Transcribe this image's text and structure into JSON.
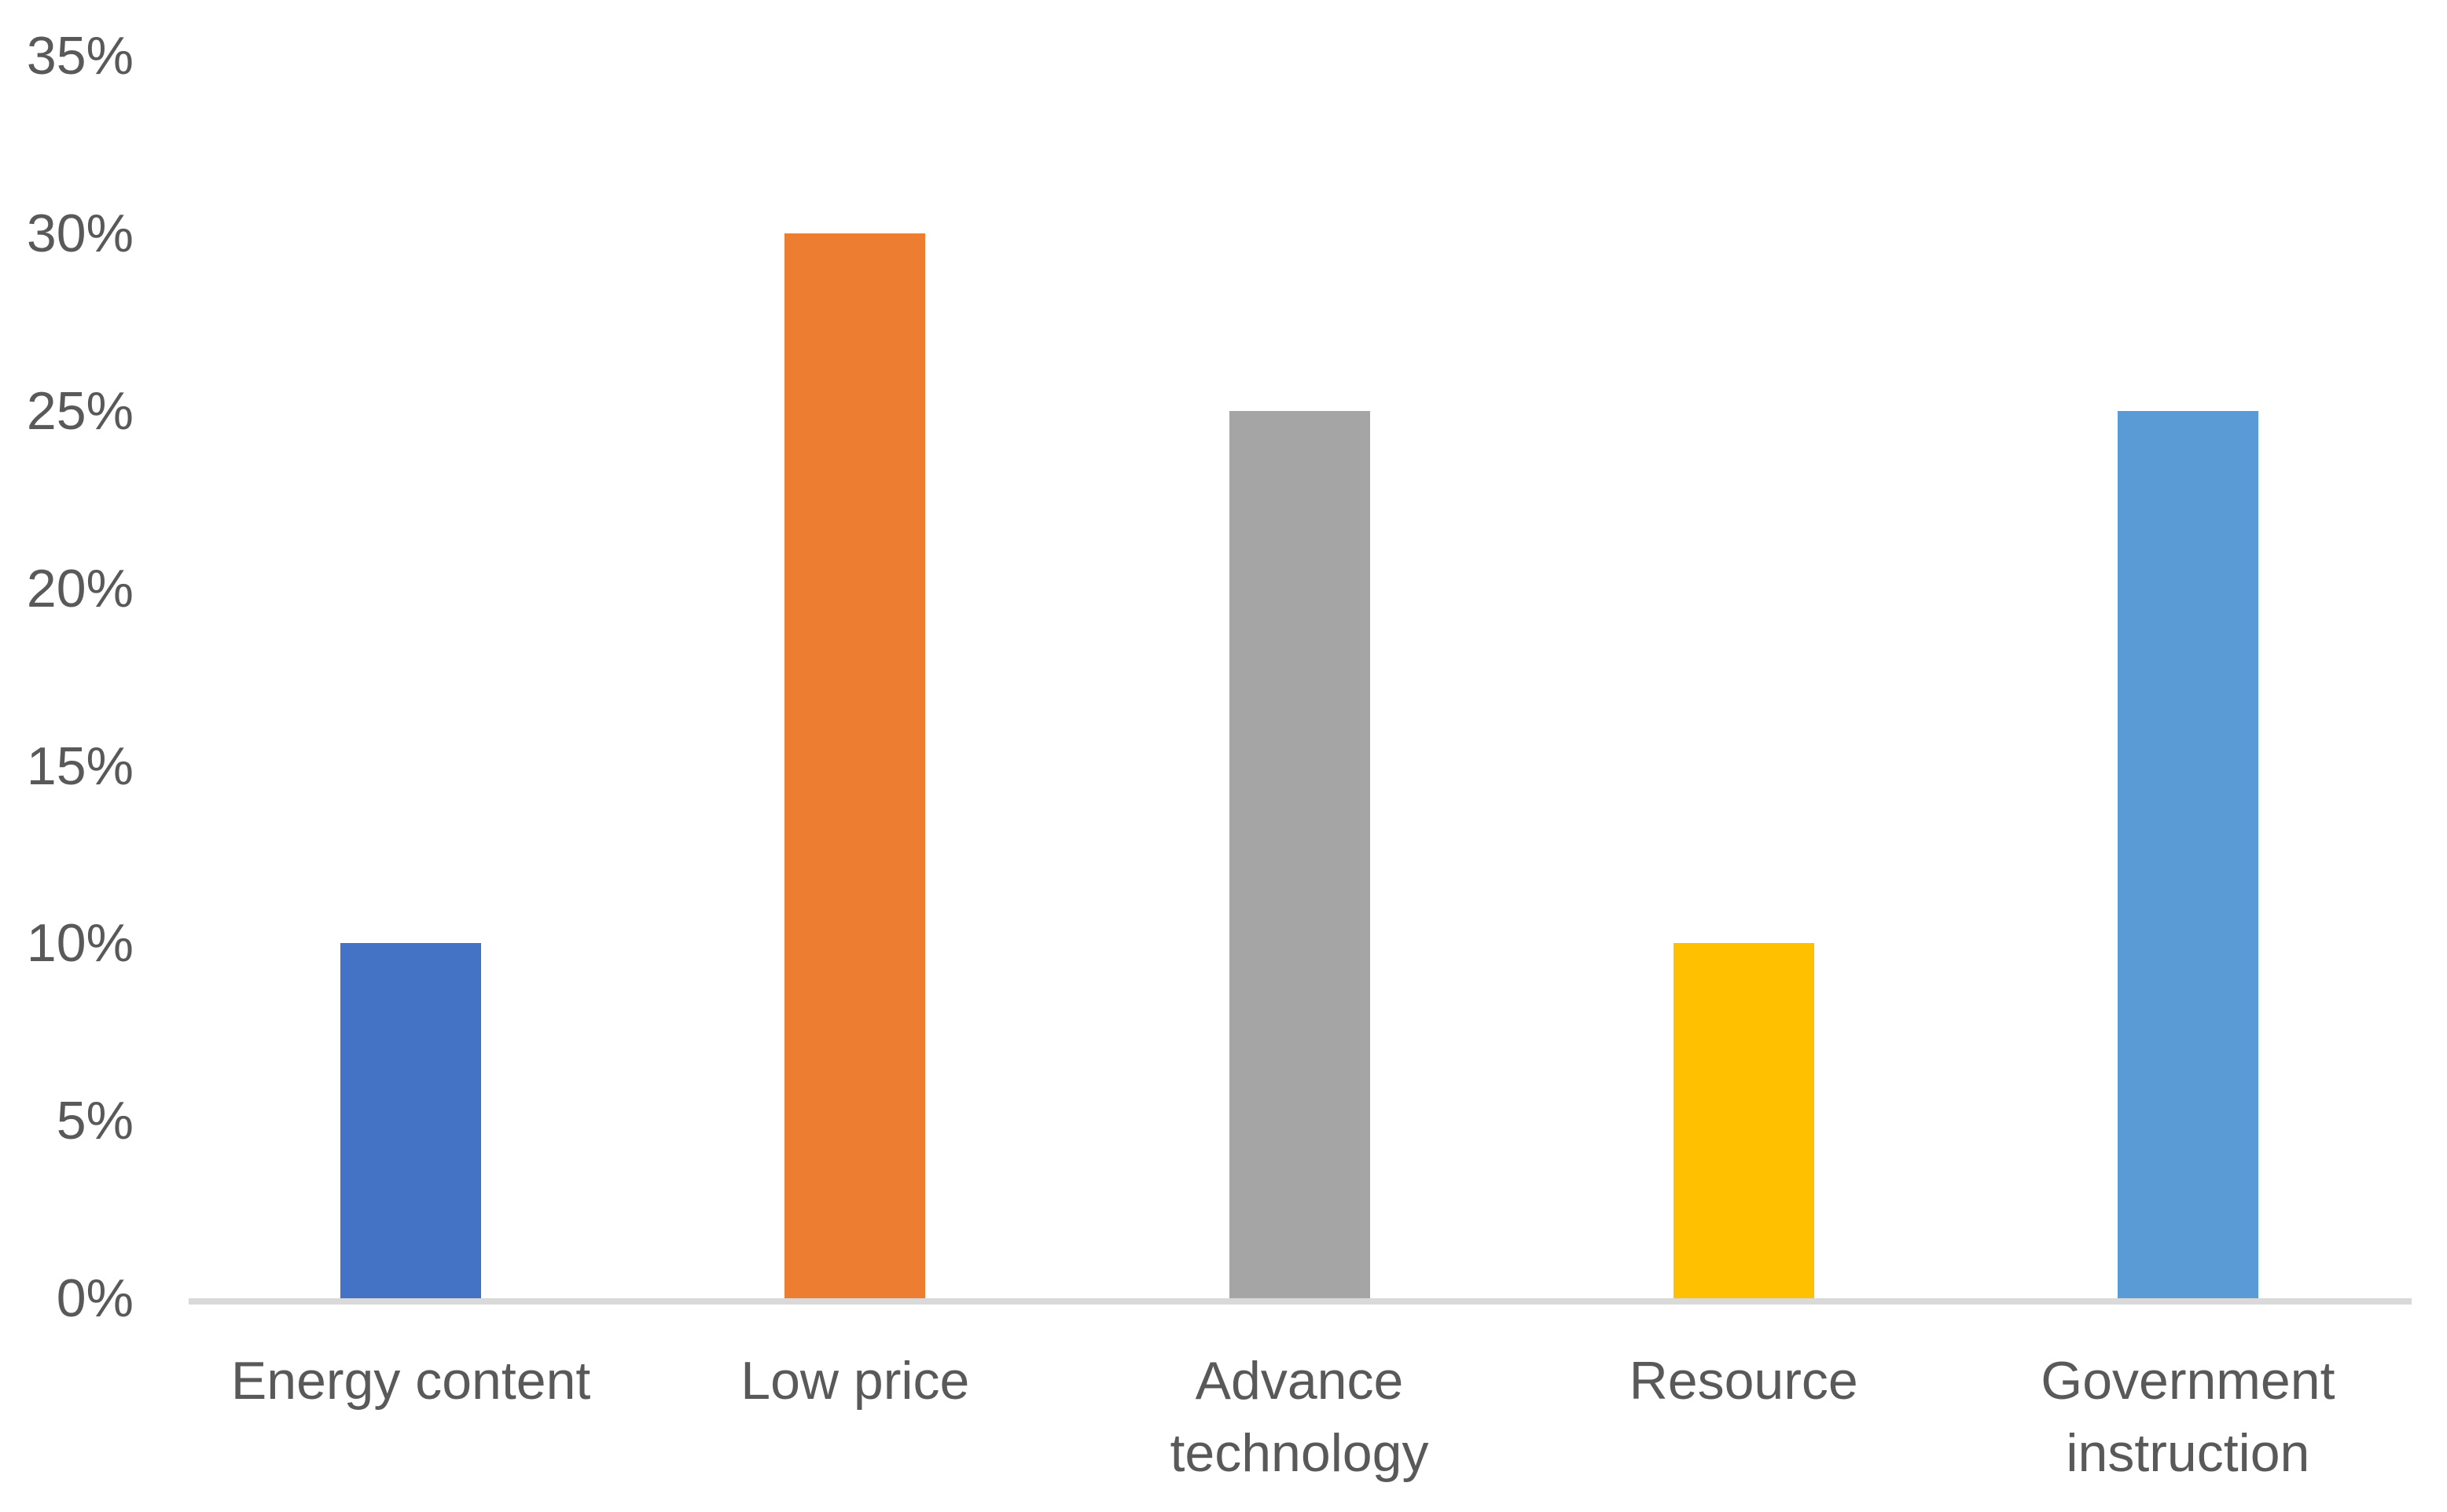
{
  "chart_data": {
    "type": "bar",
    "title": "",
    "xlabel": "",
    "ylabel": "",
    "categories": [
      "Energy content",
      "Low price",
      "Advance technology",
      "Resource",
      "Government instruction"
    ],
    "values": [
      10,
      30,
      25,
      10,
      25
    ],
    "value_unit": "%",
    "bar_colors": [
      "#4472C4",
      "#ED7D31",
      "#A5A5A5",
      "#FFC000",
      "#5B9BD5"
    ],
    "ylim": [
      0,
      35
    ],
    "ytick_step": 5,
    "ytick_labels": [
      "0%",
      "5%",
      "10%",
      "15%",
      "20%",
      "25%",
      "30%",
      "35%"
    ],
    "grid": false,
    "legend": false,
    "colors": {
      "text": "#595959",
      "axis_line": "#D9D9D9",
      "background": "#FFFFFF"
    }
  }
}
